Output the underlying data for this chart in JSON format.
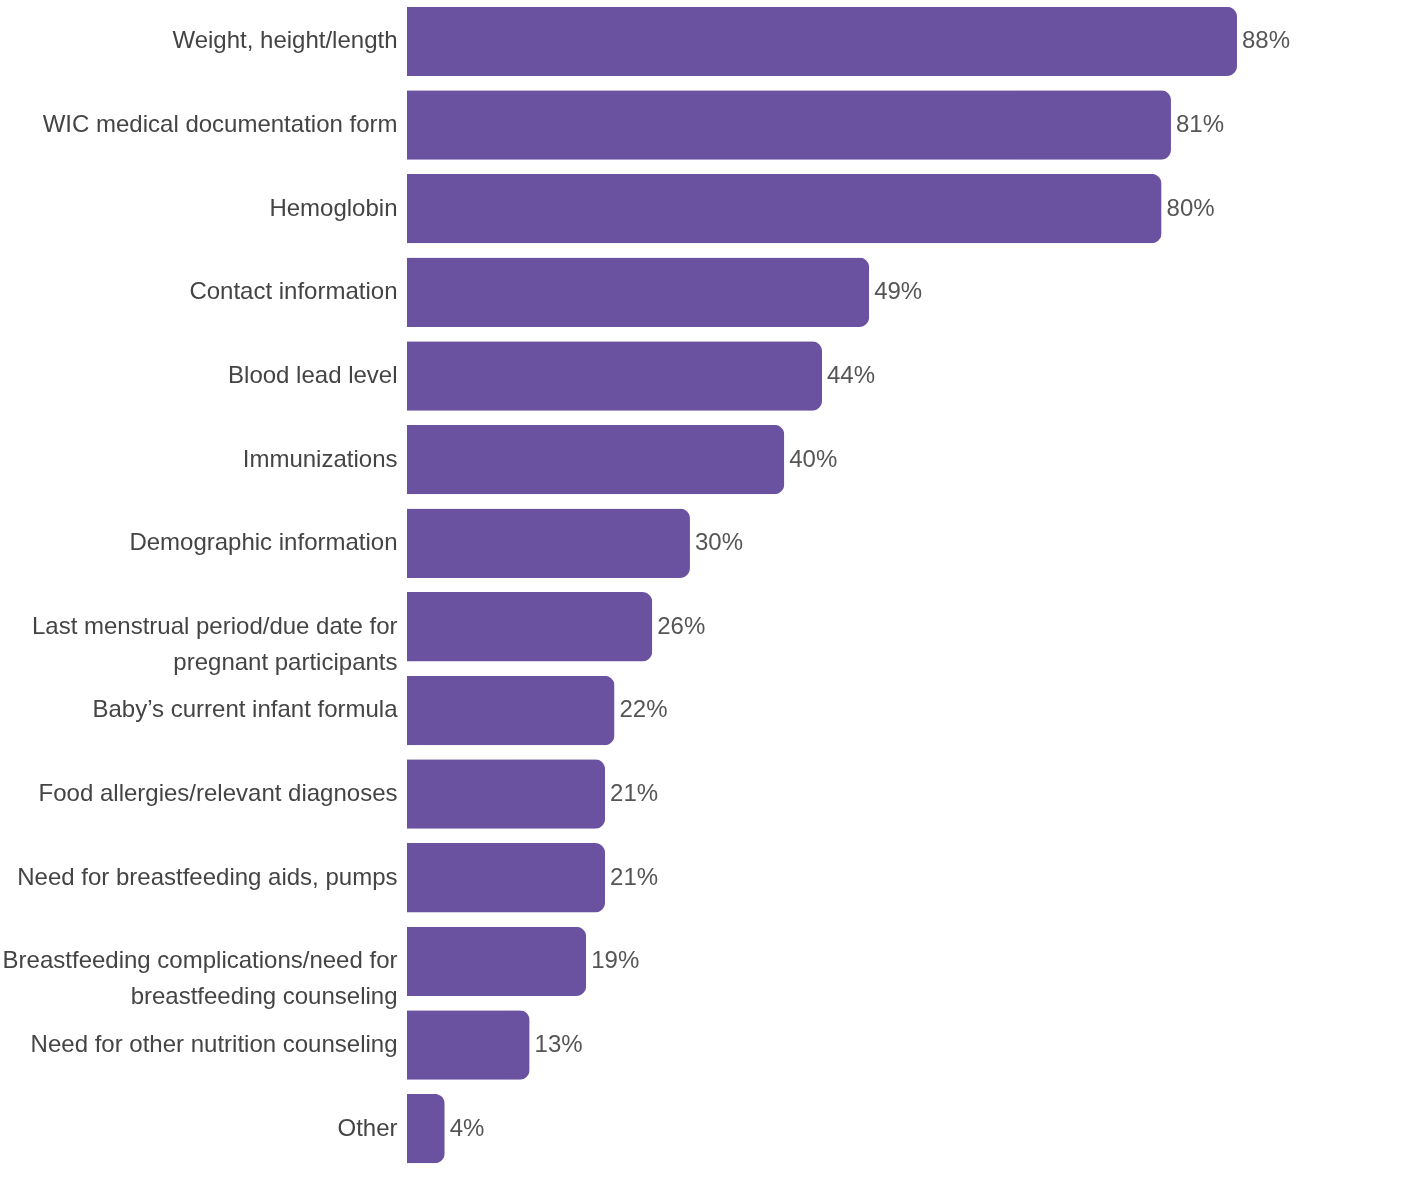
{
  "chart_data": {
    "type": "bar",
    "orientation": "horizontal",
    "categories": [
      "Weight, height/length",
      "WIC medical documentation form",
      "Hemoglobin",
      "Contact information",
      "Blood lead level",
      "Immunizations",
      "Demographic information",
      "Last menstrual period/due date for pregnant participants",
      "Baby’s current infant formula",
      "Food allergies/relevant diagnoses",
      "Need for breastfeeding aids, pumps",
      "Breastfeeding complications/need for breastfeeding counseling",
      "Need  for other nutrition counseling",
      "Other"
    ],
    "values": [
      88,
      81,
      80,
      49,
      44,
      40,
      30,
      26,
      22,
      21,
      21,
      19,
      13,
      4
    ],
    "value_labels": [
      "88%",
      "81%",
      "80%",
      "49%",
      "44%",
      "40%",
      "30%",
      "26%",
      "22%",
      "21%",
      "21%",
      "19%",
      "13%",
      "4%"
    ],
    "color": "#6b52a1"
  }
}
